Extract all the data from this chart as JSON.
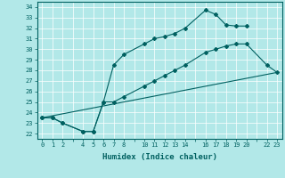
{
  "xlabel": "Humidex (Indice chaleur)",
  "bg_color": "#b2e8e8",
  "line_color": "#006060",
  "xlim": [
    -0.5,
    23.5
  ],
  "ylim": [
    21.5,
    34.5
  ],
  "xticks_all": [
    0,
    1,
    2,
    3,
    4,
    5,
    6,
    7,
    8,
    9,
    10,
    11,
    12,
    13,
    14,
    15,
    16,
    17,
    18,
    19,
    20,
    21,
    22,
    23
  ],
  "xtick_labels": {
    "0": "0",
    "1": "1",
    "2": "2",
    "4": "4",
    "5": "5",
    "6": "6",
    "7": "7",
    "8": "8",
    "10": "10",
    "11": "11",
    "12": "12",
    "13": "13",
    "14": "14",
    "16": "16",
    "17": "17",
    "18": "18",
    "19": "19",
    "20": "20",
    "22": "22",
    "23": "23"
  },
  "yticks": [
    22,
    23,
    24,
    25,
    26,
    27,
    28,
    29,
    30,
    31,
    32,
    33,
    34
  ],
  "line1_x": [
    0,
    1,
    2,
    4,
    5,
    6,
    7,
    8,
    10,
    11,
    12,
    13,
    14,
    16,
    17,
    18,
    19,
    20
  ],
  "line1_y": [
    23.5,
    23.5,
    23.0,
    22.2,
    22.2,
    25.0,
    28.5,
    29.5,
    30.5,
    31.0,
    31.2,
    31.5,
    32.0,
    33.7,
    33.3,
    32.3,
    32.2,
    32.2
  ],
  "line2_x": [
    0,
    1,
    2,
    4,
    5,
    6,
    7,
    8,
    10,
    11,
    12,
    13,
    14,
    16,
    17,
    18,
    19,
    20,
    22,
    23
  ],
  "line2_y": [
    23.5,
    23.5,
    23.0,
    22.2,
    22.2,
    25.0,
    25.0,
    25.5,
    26.5,
    27.0,
    27.5,
    28.0,
    28.5,
    29.7,
    30.0,
    30.3,
    30.5,
    30.5,
    28.5,
    27.8
  ],
  "line3_x": [
    0,
    23
  ],
  "line3_y": [
    23.5,
    27.8
  ]
}
